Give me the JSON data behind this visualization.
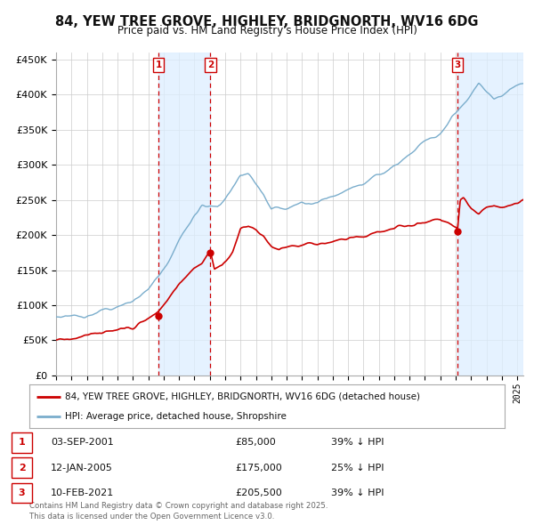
{
  "title": "84, YEW TREE GROVE, HIGHLEY, BRIDGNORTH, WV16 6DG",
  "subtitle": "Price paid vs. HM Land Registry's House Price Index (HPI)",
  "legend_line1": "84, YEW TREE GROVE, HIGHLEY, BRIDGNORTH, WV16 6DG (detached house)",
  "legend_line2": "HPI: Average price, detached house, Shropshire",
  "footer": "Contains HM Land Registry data © Crown copyright and database right 2025.\nThis data is licensed under the Open Government Licence v3.0.",
  "transactions": [
    {
      "label": "1",
      "date": "03-SEP-2001",
      "price": "£85,000",
      "pct": "39% ↓ HPI",
      "year": 2001.67
    },
    {
      "label": "2",
      "date": "12-JAN-2005",
      "price": "£175,000",
      "pct": "25% ↓ HPI",
      "year": 2005.04
    },
    {
      "label": "3",
      "date": "10-FEB-2021",
      "price": "£205,500",
      "pct": "39% ↓ HPI",
      "year": 2021.12
    }
  ],
  "transaction_prices": [
    85000,
    175000,
    205500
  ],
  "vline_color": "#cc0000",
  "vline_shade_color": "#ddeeff",
  "red_line_color": "#cc0000",
  "blue_line_color": "#7aadcc",
  "ylim": [
    0,
    460000
  ],
  "xlim_start": 1995.0,
  "xlim_end": 2025.4,
  "background_color": "#ffffff",
  "grid_color": "#cccccc",
  "title_fontsize": 11,
  "subtitle_fontsize": 9
}
